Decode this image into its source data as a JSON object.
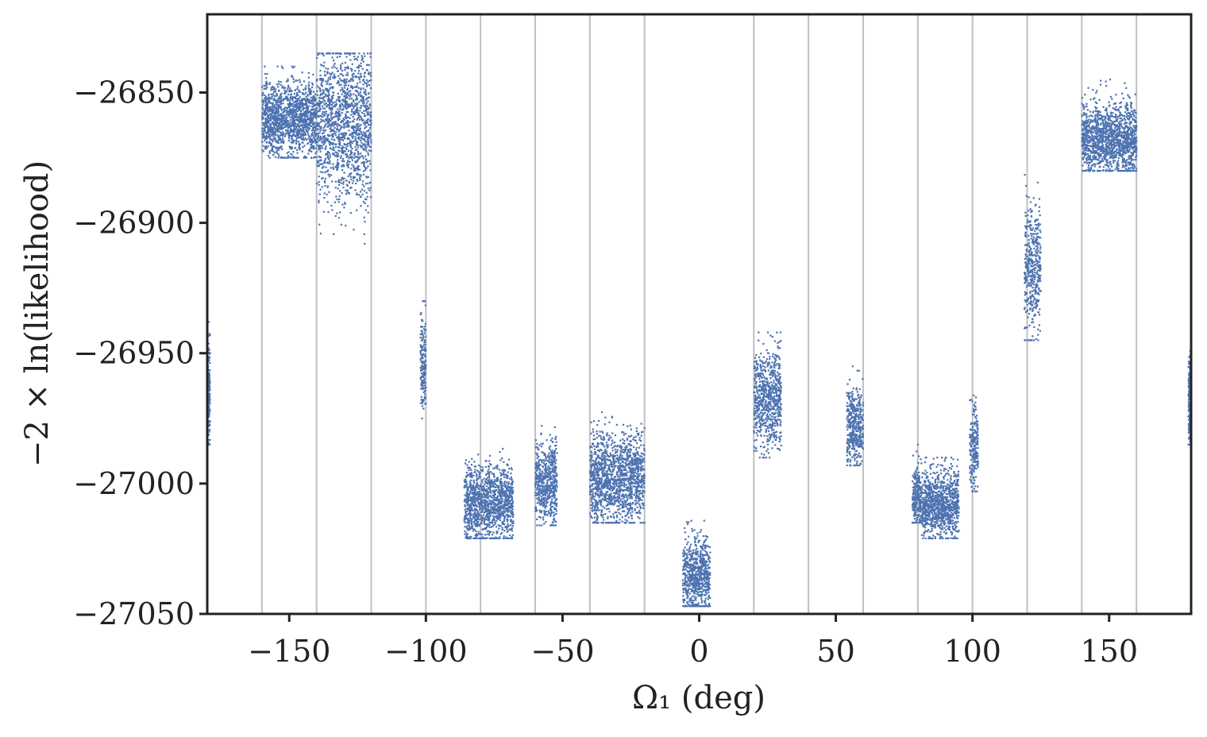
{
  "chart_data": {
    "type": "scatter",
    "xlabel": "Ω₁ (deg)",
    "ylabel": "−2 × ln(likelihood)",
    "xlim": [
      -180,
      180
    ],
    "ylim": [
      -27050,
      -26820
    ],
    "x_ticks": [
      -150,
      -100,
      -50,
      0,
      50,
      100,
      150
    ],
    "x_tick_labels": [
      "−150",
      "−100",
      "−50",
      "0",
      "50",
      "100",
      "150"
    ],
    "y_ticks": [
      -26850,
      -26900,
      -26950,
      -27000,
      -27050
    ],
    "y_tick_labels": [
      "−26850",
      "−26900",
      "−26950",
      "−27000",
      "−27050"
    ],
    "vertical_gridlines_x": [
      -160,
      -140,
      -120,
      -100,
      -80,
      -60,
      -40,
      -20,
      20,
      40,
      60,
      80,
      100,
      120,
      140,
      160
    ],
    "grid": "vertical lines only",
    "legend": "none",
    "colors": {
      "points": "#4c72b0",
      "gridline": "#c0c0c0",
      "axes": "#222222"
    },
    "clusters": [
      {
        "x_range": [
          -180,
          -179
        ],
        "y_center": -26965,
        "y_spread": [
          -26985,
          -26938
        ]
      },
      {
        "x_range": [
          -160,
          -140
        ],
        "y_center": -26860,
        "y_spread": [
          -26875,
          -26840
        ]
      },
      {
        "x_range": [
          -140,
          -120
        ],
        "y_center": -26862,
        "y_spread": [
          -26908,
          -26835
        ]
      },
      {
        "x_range": [
          -102,
          -100
        ],
        "y_center": -26955,
        "y_spread": [
          -26975,
          -26930
        ]
      },
      {
        "x_range": [
          -86,
          -68
        ],
        "y_center": -27008,
        "y_spread": [
          -27021,
          -26985
        ]
      },
      {
        "x_range": [
          -60,
          -52
        ],
        "y_center": -27000,
        "y_spread": [
          -27016,
          -26975
        ]
      },
      {
        "x_range": [
          -40,
          -20
        ],
        "y_center": -26998,
        "y_spread": [
          -27015,
          -26972
        ]
      },
      {
        "x_range": [
          -6,
          4
        ],
        "y_center": -27035,
        "y_spread": [
          -27047,
          -27010
        ]
      },
      {
        "x_range": [
          20,
          30
        ],
        "y_center": -26968,
        "y_spread": [
          -26990,
          -26942
        ]
      },
      {
        "x_range": [
          54,
          60
        ],
        "y_center": -26978,
        "y_spread": [
          -26993,
          -26955
        ]
      },
      {
        "x_range": [
          78,
          81
        ],
        "y_center": -27005,
        "y_spread": [
          -27015,
          -26985
        ]
      },
      {
        "x_range": [
          81,
          95
        ],
        "y_center": -27008,
        "y_spread": [
          -27021,
          -26990
        ]
      },
      {
        "x_range": [
          99,
          102
        ],
        "y_center": -26985,
        "y_spread": [
          -27003,
          -26960
        ]
      },
      {
        "x_range": [
          119,
          125
        ],
        "y_center": -26918,
        "y_spread": [
          -26945,
          -26880
        ]
      },
      {
        "x_range": [
          140,
          160
        ],
        "y_center": -26868,
        "y_spread": [
          -26880,
          -26845
        ]
      },
      {
        "x_range": [
          179,
          180
        ],
        "y_center": -26968,
        "y_spread": [
          -26985,
          -26935
        ]
      }
    ]
  }
}
